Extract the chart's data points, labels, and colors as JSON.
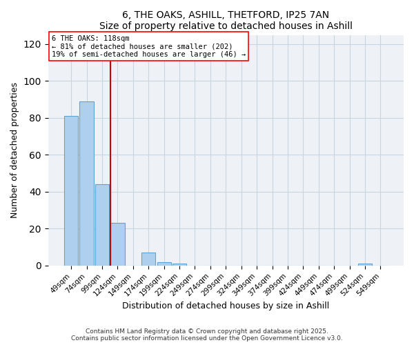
{
  "title": "6, THE OAKS, ASHILL, THETFORD, IP25 7AN",
  "subtitle": "Size of property relative to detached houses in Ashill",
  "xlabel": "Distribution of detached houses by size in Ashill",
  "ylabel": "Number of detached properties",
  "bar_labels": [
    "49sqm",
    "74sqm",
    "99sqm",
    "124sqm",
    "149sqm",
    "174sqm",
    "199sqm",
    "224sqm",
    "249sqm",
    "274sqm",
    "299sqm",
    "324sqm",
    "349sqm",
    "374sqm",
    "399sqm",
    "424sqm",
    "449sqm",
    "474sqm",
    "499sqm",
    "524sqm",
    "549sqm"
  ],
  "bar_values": [
    81,
    89,
    44,
    23,
    0,
    7,
    2,
    1,
    0,
    0,
    0,
    0,
    0,
    0,
    0,
    0,
    0,
    0,
    0,
    1,
    0
  ],
  "bar_color": "#aed0ee",
  "bar_edge_color": "#5ba3d0",
  "vline_color": "#cc0000",
  "annotation_title": "6 THE OAKS: 118sqm",
  "annotation_line1": "← 81% of detached houses are smaller (202)",
  "annotation_line2": "19% of semi-detached houses are larger (46) →",
  "ylim": [
    0,
    125
  ],
  "yticks": [
    0,
    20,
    40,
    60,
    80,
    100,
    120
  ],
  "footer1": "Contains HM Land Registry data © Crown copyright and database right 2025.",
  "footer2": "Contains public sector information licensed under the Open Government Licence v3.0.",
  "bg_color": "#eef2f7",
  "grid_color": "#c8d4e0"
}
